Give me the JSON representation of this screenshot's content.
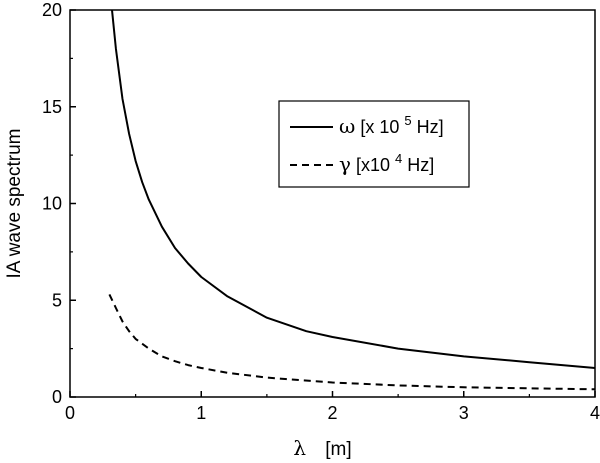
{
  "chart_data": {
    "type": "line",
    "xlabel": {
      "symbol": "λ",
      "unit": "[m]"
    },
    "ylabel": "IA wave spectrum",
    "xlim": [
      0,
      4
    ],
    "ylim": [
      0,
      20
    ],
    "xticks": [
      "0",
      "1",
      "2",
      "3",
      "4"
    ],
    "yticks": [
      "0",
      "5",
      "10",
      "15",
      "20"
    ],
    "grid": false,
    "legend_position": "upper-right",
    "series": [
      {
        "name": "ω [x 10^5 Hz]",
        "legend": {
          "symbol": "ω",
          "pre": "[x 10",
          "sup": "5",
          "post": " Hz]"
        },
        "style": "solid",
        "color": "#000000",
        "x": [
          0.32,
          0.35,
          0.4,
          0.45,
          0.5,
          0.55,
          0.6,
          0.7,
          0.8,
          0.9,
          1.0,
          1.2,
          1.5,
          1.8,
          2.0,
          2.5,
          3.0,
          3.5,
          4.0
        ],
        "y": [
          20.0,
          18.0,
          15.4,
          13.6,
          12.2,
          11.1,
          10.2,
          8.8,
          7.7,
          6.9,
          6.2,
          5.2,
          4.1,
          3.4,
          3.1,
          2.5,
          2.1,
          1.8,
          1.5
        ]
      },
      {
        "name": "γ [x10^4 Hz]",
        "legend": {
          "symbol": "γ",
          "pre": "[x10",
          "sup": "4",
          "post": " Hz]"
        },
        "style": "dashed",
        "color": "#000000",
        "x": [
          0.3,
          0.35,
          0.4,
          0.45,
          0.5,
          0.6,
          0.7,
          0.8,
          0.9,
          1.0,
          1.2,
          1.5,
          2.0,
          2.5,
          3.0,
          3.5,
          4.0
        ],
        "y": [
          5.3,
          4.6,
          3.9,
          3.4,
          3.0,
          2.5,
          2.1,
          1.85,
          1.65,
          1.5,
          1.25,
          1.0,
          0.75,
          0.6,
          0.5,
          0.45,
          0.4
        ]
      }
    ]
  }
}
